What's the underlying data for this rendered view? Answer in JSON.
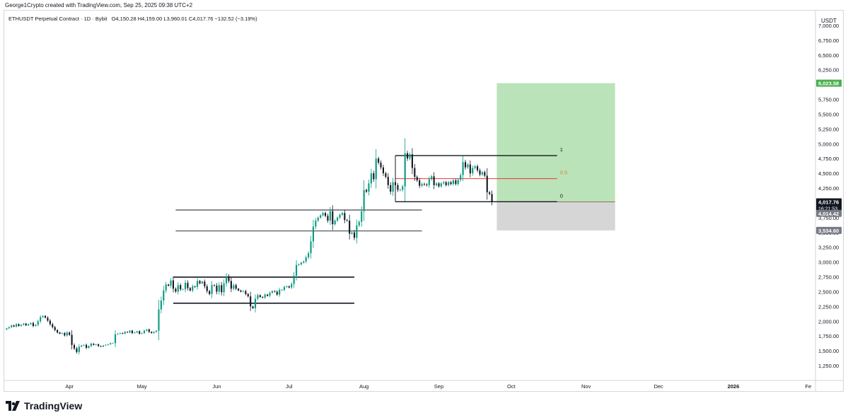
{
  "header": {
    "credit": "George1Crypto created with TradingView.com, Sep 25, 2025 09:38 UTC+2",
    "symbol": "ETHUSDT Perpetual Contract · 1D · Bybit",
    "ohlc": "O4,150.28 H4,159.00 L3,960.01 C4,017.76 −132.52 (−3.19%)"
  },
  "brand": {
    "name": "TradingView",
    "icon": "tradingview-logo-icon"
  },
  "colors": {
    "up": "#089981",
    "down": "#131722",
    "target": "#b7e1b5",
    "stop": "#d6d6d6",
    "target_label_bg": "#4caf50",
    "mid_line": "#e53935",
    "fib_mid_text": "#c98a2b"
  },
  "chart_data": {
    "type": "candlestick",
    "currency": "USDT",
    "ylim": [
      1000,
      7250
    ],
    "y_ticks": [
      1250,
      1500,
      1750,
      2000,
      2250,
      2500,
      2750,
      3000,
      3250,
      3500,
      3750,
      4000,
      4250,
      4500,
      4750,
      5000,
      5250,
      5500,
      5750,
      6000,
      6250,
      6500,
      6750,
      7000
    ],
    "y_tick_labels": [
      "1,250.00",
      "1,500.00",
      "1,750.00",
      "2,000.00",
      "2,250.00",
      "2,500.00",
      "2,750.00",
      "3,000.00",
      "3,250.00",
      "3,500.00",
      "3,750.00",
      "4,000.00",
      "4,250.00",
      "4,500.00",
      "4,750.00",
      "5,000.00",
      "5,250.00",
      "5,500.00",
      "5,750.00",
      "6,000.00",
      "6,250.00",
      "6,500.00",
      "6,750.00",
      "7,000.00"
    ],
    "x_labels": [
      {
        "label": "Apr",
        "date": "2025-04-01"
      },
      {
        "label": "May",
        "date": "2025-05-01"
      },
      {
        "label": "Jun",
        "date": "2025-06-01"
      },
      {
        "label": "Jul",
        "date": "2025-07-01"
      },
      {
        "label": "Aug",
        "date": "2025-08-01"
      },
      {
        "label": "Sep",
        "date": "2025-09-01"
      },
      {
        "label": "Oct",
        "date": "2025-10-01"
      },
      {
        "label": "Nov",
        "date": "2025-11-01"
      },
      {
        "label": "Dec",
        "date": "2025-12-01"
      },
      {
        "label": "2026",
        "date": "2026-01-01"
      },
      {
        "label": "Fe",
        "date": "2026-02-01"
      }
    ],
    "x_range": [
      "2025-03-05",
      "2026-02-04"
    ],
    "closes": {
      "start": "2025-03-06",
      "values": [
        1880,
        1900,
        1930,
        1910,
        1950,
        1920,
        1940,
        1960,
        1930,
        1950,
        1970,
        1920,
        1940,
        2000,
        2070,
        2090,
        2060,
        2010,
        1950,
        1900,
        1850,
        1810,
        1790,
        1800,
        1760,
        1810,
        1770,
        1600,
        1540,
        1480,
        1570,
        1590,
        1600,
        1550,
        1580,
        1620,
        1600,
        1610,
        1580,
        1570,
        1590,
        1600,
        1610,
        1630,
        1630,
        1780,
        1790,
        1800,
        1790,
        1820,
        1810,
        1840,
        1800,
        1810,
        1830,
        1790,
        1800,
        1840,
        1860,
        1820,
        1800,
        1820,
        1840,
        2200,
        2350,
        2520,
        2620,
        2600,
        2690,
        2550,
        2500,
        2610,
        2540,
        2540,
        2650,
        2560,
        2520,
        2590,
        2580,
        2680,
        2640,
        2670,
        2590,
        2510,
        2460,
        2610,
        2600,
        2500,
        2610,
        2490,
        2640,
        2760,
        2680,
        2550,
        2610,
        2550,
        2520,
        2500,
        2510,
        2460,
        2420,
        2250,
        2220,
        2380,
        2440,
        2410,
        2400,
        2450,
        2430,
        2480,
        2510,
        2500,
        2450,
        2530,
        2530,
        2580,
        2590,
        2570,
        2630,
        2770,
        2950,
        2960,
        2990,
        3010,
        3080,
        3150,
        3350,
        3600,
        3700,
        3750,
        3790,
        3830,
        3780,
        3700,
        3860,
        3640,
        3700,
        3750,
        3800,
        3830,
        3710,
        3700,
        3480,
        3500,
        3410,
        3620,
        3680,
        3860,
        4220,
        4190,
        4330,
        4500,
        4400,
        4750,
        4680,
        4600,
        4500,
        4440,
        4300,
        4190,
        4350,
        4300,
        4220,
        4220,
        4280,
        4840,
        4750,
        4820,
        4590,
        4440,
        4380,
        4290,
        4320,
        4310,
        4300,
        4400,
        4450,
        4300,
        4330,
        4280,
        4330,
        4350,
        4300,
        4350,
        4320,
        4380,
        4320,
        4390,
        4470,
        4690,
        4600,
        4650,
        4500,
        4590,
        4620,
        4550,
        4480,
        4520,
        4460,
        4180,
        4150,
        4018
      ]
    },
    "last_price": 4017.76,
    "last_price_label": "4,017.76",
    "countdown": "16:21:53",
    "bid_price": 4014.42,
    "bid_price_label": "4,014.42",
    "position": {
      "start": "2025-09-25",
      "end": "2025-11-13",
      "entry": 4017.76,
      "target": 6023.58,
      "target_label": "6,023.58",
      "stop": 3534.6,
      "stop_label": "3,534.60"
    },
    "fib": {
      "start": "2025-08-14",
      "end": "2025-10-20",
      "level_1": 4800,
      "level_0": 4020,
      "labels": [
        "1",
        "0.5",
        "0"
      ]
    },
    "horizontal_lines": [
      {
        "start": "2025-05-15",
        "end": "2025-08-25",
        "price": 3880,
        "weight": "thin"
      },
      {
        "start": "2025-05-15",
        "end": "2025-08-25",
        "price": 3525,
        "weight": "thin"
      },
      {
        "start": "2025-05-14",
        "end": "2025-07-28",
        "price": 2745,
        "weight": "bold"
      },
      {
        "start": "2025-05-14",
        "end": "2025-07-28",
        "price": 2305,
        "weight": "bold"
      }
    ]
  }
}
